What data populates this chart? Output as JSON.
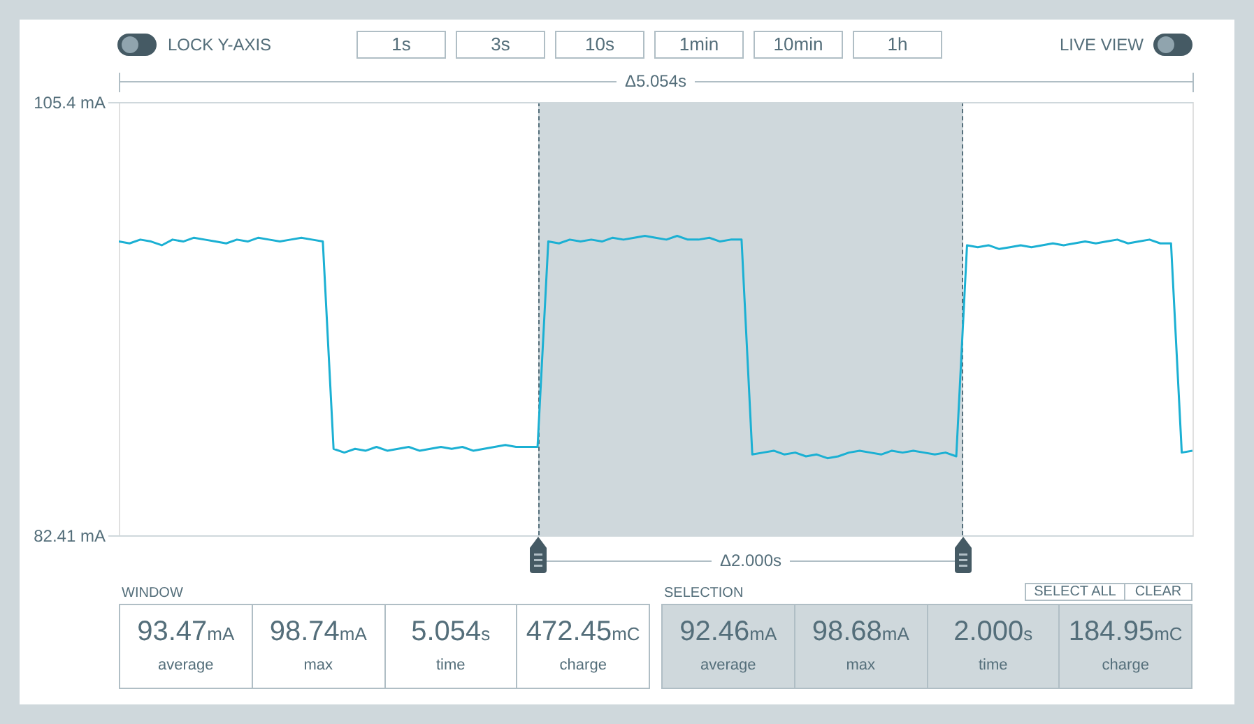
{
  "chart_data": {
    "type": "line",
    "categories": [
      null,
      null,
      null,
      null,
      null,
      null,
      null,
      null,
      null,
      null,
      null,
      null,
      null,
      null,
      null,
      null,
      null,
      null,
      null,
      null,
      null,
      null,
      null,
      null,
      null,
      null,
      null,
      null,
      null,
      null,
      null,
      null,
      null,
      null,
      null,
      null,
      null,
      null,
      null,
      null,
      null,
      null,
      null,
      null,
      null,
      null,
      null,
      null,
      null,
      null,
      null,
      null,
      null,
      null,
      null,
      null,
      null,
      null,
      null,
      null,
      null,
      null,
      null,
      null,
      null,
      null,
      null,
      null,
      null,
      null,
      null,
      null,
      null,
      null,
      null,
      null,
      null,
      null,
      null,
      null,
      null,
      null,
      null,
      null,
      null,
      null,
      null,
      null,
      null,
      null,
      null,
      null,
      null,
      null,
      null,
      null,
      null,
      null,
      null,
      null,
      null
    ],
    "series": [
      {
        "color": "#1bb0d3",
        "values": [
          98.0,
          97.9,
          98.1,
          98.0,
          97.8,
          98.1,
          98.0,
          98.2,
          98.1,
          98.0,
          97.9,
          98.1,
          98.0,
          98.2,
          98.1,
          98.0,
          98.1,
          98.2,
          98.1,
          98.0,
          87.0,
          86.8,
          87.0,
          86.9,
          87.1,
          86.9,
          87.0,
          87.1,
          86.9,
          87.0,
          87.1,
          87.0,
          87.1,
          86.9,
          87.0,
          87.1,
          87.2,
          87.1,
          87.1,
          87.1,
          98.0,
          97.9,
          98.1,
          98.0,
          98.1,
          98.0,
          98.2,
          98.1,
          98.2,
          98.3,
          98.2,
          98.1,
          98.3,
          98.1,
          98.1,
          98.2,
          98.0,
          98.1,
          98.1,
          86.7,
          86.8,
          86.9,
          86.7,
          86.8,
          86.6,
          86.7,
          86.5,
          86.6,
          86.8,
          86.9,
          86.8,
          86.7,
          86.9,
          86.8,
          86.9,
          86.8,
          86.7,
          86.8,
          86.6,
          97.8,
          97.7,
          97.8,
          97.6,
          97.7,
          97.8,
          97.7,
          97.8,
          97.9,
          97.8,
          97.9,
          98.0,
          97.9,
          98.0,
          98.1,
          97.9,
          98.0,
          98.1,
          97.9,
          97.9,
          86.8,
          86.9
        ]
      }
    ],
    "ylim": [
      82.41,
      105.4
    ],
    "yticks": [
      {
        "value": 82.41,
        "label": "82.41 mA"
      },
      {
        "value": 105.4,
        "label": "105.4 mA"
      }
    ],
    "grid": "y",
    "tick_labels": "y",
    "annotations": [
      "LOCK Y-AXIS",
      "1s",
      "3s",
      "10s",
      "1min",
      "10min",
      "1h",
      "LIVE VIEW",
      "Δ5.054s",
      "WINDOW",
      "93.47mA",
      "average",
      "98.74mA",
      "max",
      "5.054s",
      "time",
      "472.45mC",
      "charge",
      "SELECTION",
      "SELECT ALL",
      "CLEAR",
      "92.46mA",
      "average",
      "98.68mA",
      "max",
      "2.000s",
      "time",
      "184.95mC",
      "charge",
      "Δ2.000s"
    ]
  }
}
